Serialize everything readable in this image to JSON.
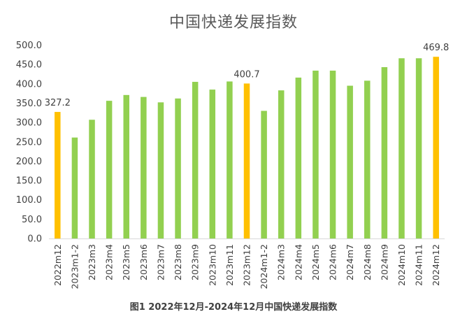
{
  "chart_data": {
    "type": "bar",
    "title": "中国快递发展指数",
    "caption": "图1 2022年12月-2024年12月中国快递发展指数",
    "categories": [
      "2022m12",
      "2023m1-2",
      "2023m3",
      "2023m4",
      "2023m5",
      "2023m6",
      "2023m7",
      "2023m8",
      "2023m9",
      "2023m10",
      "2023m11",
      "2023m12",
      "2024m1-2",
      "2024m3",
      "2024m4",
      "2024m5",
      "2024m6",
      "2024m7",
      "2024m8",
      "2024m9",
      "2024m10",
      "2024m11",
      "2024m12"
    ],
    "values": [
      327.2,
      261,
      307,
      356,
      371,
      366,
      352,
      362,
      405,
      385,
      406,
      400.7,
      330,
      383,
      416,
      434,
      434,
      395,
      408,
      443,
      466,
      466,
      469.8
    ],
    "highlight_indices": [
      0,
      11,
      22
    ],
    "data_labels": [
      {
        "index": 0,
        "text": "327.2"
      },
      {
        "index": 11,
        "text": "400.7"
      },
      {
        "index": 22,
        "text": "469.8"
      }
    ],
    "y_ticks": [
      "0.0",
      "50.0",
      "100.0",
      "150.0",
      "200.0",
      "250.0",
      "300.0",
      "350.0",
      "400.0",
      "450.0",
      "500.0"
    ],
    "ylim": [
      0,
      500
    ],
    "grid": false,
    "legend": "none",
    "colors": {
      "bar": "#92D050",
      "highlight": "#FFC000",
      "axis": "#D9D9D9"
    }
  }
}
